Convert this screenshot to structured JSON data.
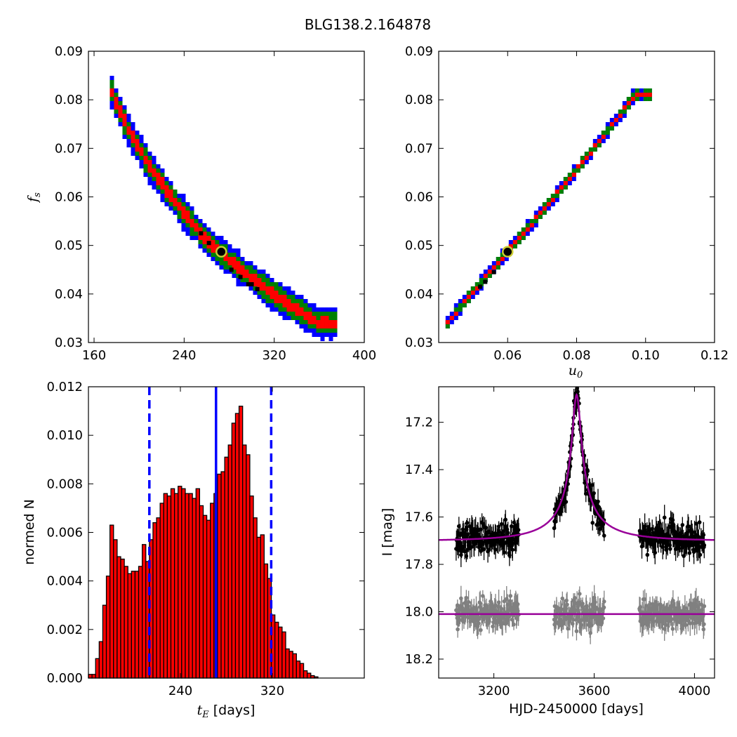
{
  "figure": {
    "title": "BLG138.2.164878"
  },
  "chart_data": [
    {
      "panel": "top-left",
      "type": "heatmap",
      "title": "",
      "xlabel": "",
      "ylabel": "f_s",
      "ylabel_main": "f",
      "ylabel_sub": "s",
      "xlim": [
        155,
        400
      ],
      "ylim": [
        0.03,
        0.09
      ],
      "xticks": [
        160,
        240,
        320,
        400
      ],
      "xtick_labels": [
        "160",
        "240",
        "320",
        "400"
      ],
      "yticks": [
        0.03,
        0.04,
        0.05,
        0.06,
        0.07,
        0.08,
        0.09
      ],
      "ytick_labels": [
        "0.03",
        "0.04",
        "0.05",
        "0.06",
        "0.07",
        "0.08",
        "0.09"
      ],
      "curve": [
        [
          175,
          0.082
        ],
        [
          190,
          0.074
        ],
        [
          210,
          0.066
        ],
        [
          235,
          0.058
        ],
        [
          260,
          0.051
        ],
        [
          285,
          0.046
        ],
        [
          310,
          0.0415
        ],
        [
          335,
          0.0375
        ],
        [
          360,
          0.034
        ]
      ],
      "half_widths": {
        "blue": 0.0032,
        "green": 0.0022,
        "red": 0.0011
      },
      "x_extent": [
        174,
        375
      ],
      "black_points": [
        [
          255,
          0.0525
        ],
        [
          282,
          0.045
        ],
        [
          290,
          0.0435
        ],
        [
          297,
          0.042
        ],
        [
          305,
          0.041
        ],
        [
          262,
          0.0505
        ],
        [
          300,
          0.042
        ]
      ],
      "best_fit": [
        273,
        0.0487
      ],
      "grid": false
    },
    {
      "panel": "top-right",
      "type": "heatmap",
      "title": "",
      "xlabel": "u_0",
      "xlabel_main": "u",
      "xlabel_sub": "0",
      "ylabel": "",
      "xlim": [
        0.04,
        0.12
      ],
      "ylim": [
        0.03,
        0.09
      ],
      "xticks": [
        0.06,
        0.08,
        0.1,
        0.12
      ],
      "xtick_labels": [
        "0.06",
        "0.08",
        "0.10",
        "0.12"
      ],
      "yticks": [
        0.03,
        0.04,
        0.05,
        0.06,
        0.07,
        0.08,
        0.09
      ],
      "ytick_labels": [
        "0.03",
        "0.04",
        "0.05",
        "0.06",
        "0.07",
        "0.08",
        "0.09"
      ],
      "curve": [
        [
          0.042,
          0.0335
        ],
        [
          0.05,
          0.0405
        ],
        [
          0.06,
          0.0487
        ],
        [
          0.07,
          0.057
        ],
        [
          0.08,
          0.0655
        ],
        [
          0.09,
          0.0745
        ],
        [
          0.097,
          0.081
        ]
      ],
      "half_widths": {
        "blue": 0.0014,
        "green": 0.0009,
        "red": 0.0004
      },
      "x_extent": [
        0.042,
        0.101
      ],
      "black_points": [
        [
          0.052,
          0.0415
        ],
        [
          0.0535,
          0.0425
        ],
        [
          0.056,
          0.0445
        ]
      ],
      "best_fit": [
        0.06,
        0.0487
      ],
      "grid": false
    },
    {
      "panel": "bottom-left",
      "type": "bar",
      "title": "",
      "xlabel": "t_E [days]",
      "xlabel_main": "t",
      "xlabel_sub": "E",
      "xlabel_unit": "[days]",
      "ylabel": "normed N",
      "xlim": [
        160,
        400
      ],
      "ylim": [
        0,
        0.012
      ],
      "xticks": [
        240,
        320
      ],
      "xtick_labels": [
        "240",
        "320"
      ],
      "yticks": [
        0,
        0.002,
        0.004,
        0.006,
        0.008,
        0.01,
        0.012
      ],
      "ytick_labels": [
        "0.000",
        "0.002",
        "0.004",
        "0.006",
        "0.008",
        "0.010",
        "0.012"
      ],
      "bin_start": 160,
      "bin_width": 3.12,
      "values": [
        0.00015,
        0.00015,
        0.0008,
        0.0015,
        0.003,
        0.0042,
        0.0063,
        0.0057,
        0.005,
        0.0049,
        0.0046,
        0.0043,
        0.0044,
        0.0044,
        0.0046,
        0.0055,
        0.0048,
        0.0057,
        0.0064,
        0.0066,
        0.0072,
        0.0076,
        0.0075,
        0.0078,
        0.0076,
        0.0079,
        0.0078,
        0.0076,
        0.0076,
        0.0074,
        0.0078,
        0.0071,
        0.0067,
        0.0065,
        0.0072,
        0.0076,
        0.0084,
        0.0085,
        0.0091,
        0.0096,
        0.0105,
        0.0109,
        0.0112,
        0.0096,
        0.0092,
        0.0075,
        0.0066,
        0.0058,
        0.0059,
        0.0047,
        0.0041,
        0.0026,
        0.0023,
        0.0021,
        0.0019,
        0.0012,
        0.0011,
        0.001,
        0.0007,
        0.0006,
        0.0003,
        0.0002,
        0.0001,
        5e-05
      ],
      "median_line": 271,
      "dashed_lines": [
        213,
        319
      ],
      "bar_color": "#ff0000",
      "line_color": "#0000ff"
    },
    {
      "panel": "bottom-right",
      "type": "scatter",
      "title": "",
      "xlabel": "HJD-2450000 [days]",
      "ylabel": "I [mag]",
      "xlim": [
        2980,
        4080
      ],
      "ylim": [
        18.28,
        17.05
      ],
      "y_inverted": true,
      "xticks": [
        3200,
        3600,
        4000
      ],
      "xtick_labels": [
        "3200",
        "3600",
        "4000"
      ],
      "yticks": [
        17.2,
        17.4,
        17.6,
        17.8,
        18.0,
        18.2
      ],
      "ytick_labels": [
        "17.2",
        "17.4",
        "17.6",
        "17.8",
        "18.0",
        "18.2"
      ],
      "model": {
        "t0": 3530,
        "tE": 273,
        "u0": 0.06,
        "fs": 0.0487,
        "baseline": 17.7,
        "color": "#990099"
      },
      "data_segments": [
        [
          3050,
          3300
        ],
        [
          3440,
          3640
        ],
        [
          3780,
          4040
        ]
      ],
      "data_color": "#000000",
      "residual_offset": 18.01,
      "residual_color": "#808080",
      "residual_line": 18.01
    }
  ]
}
